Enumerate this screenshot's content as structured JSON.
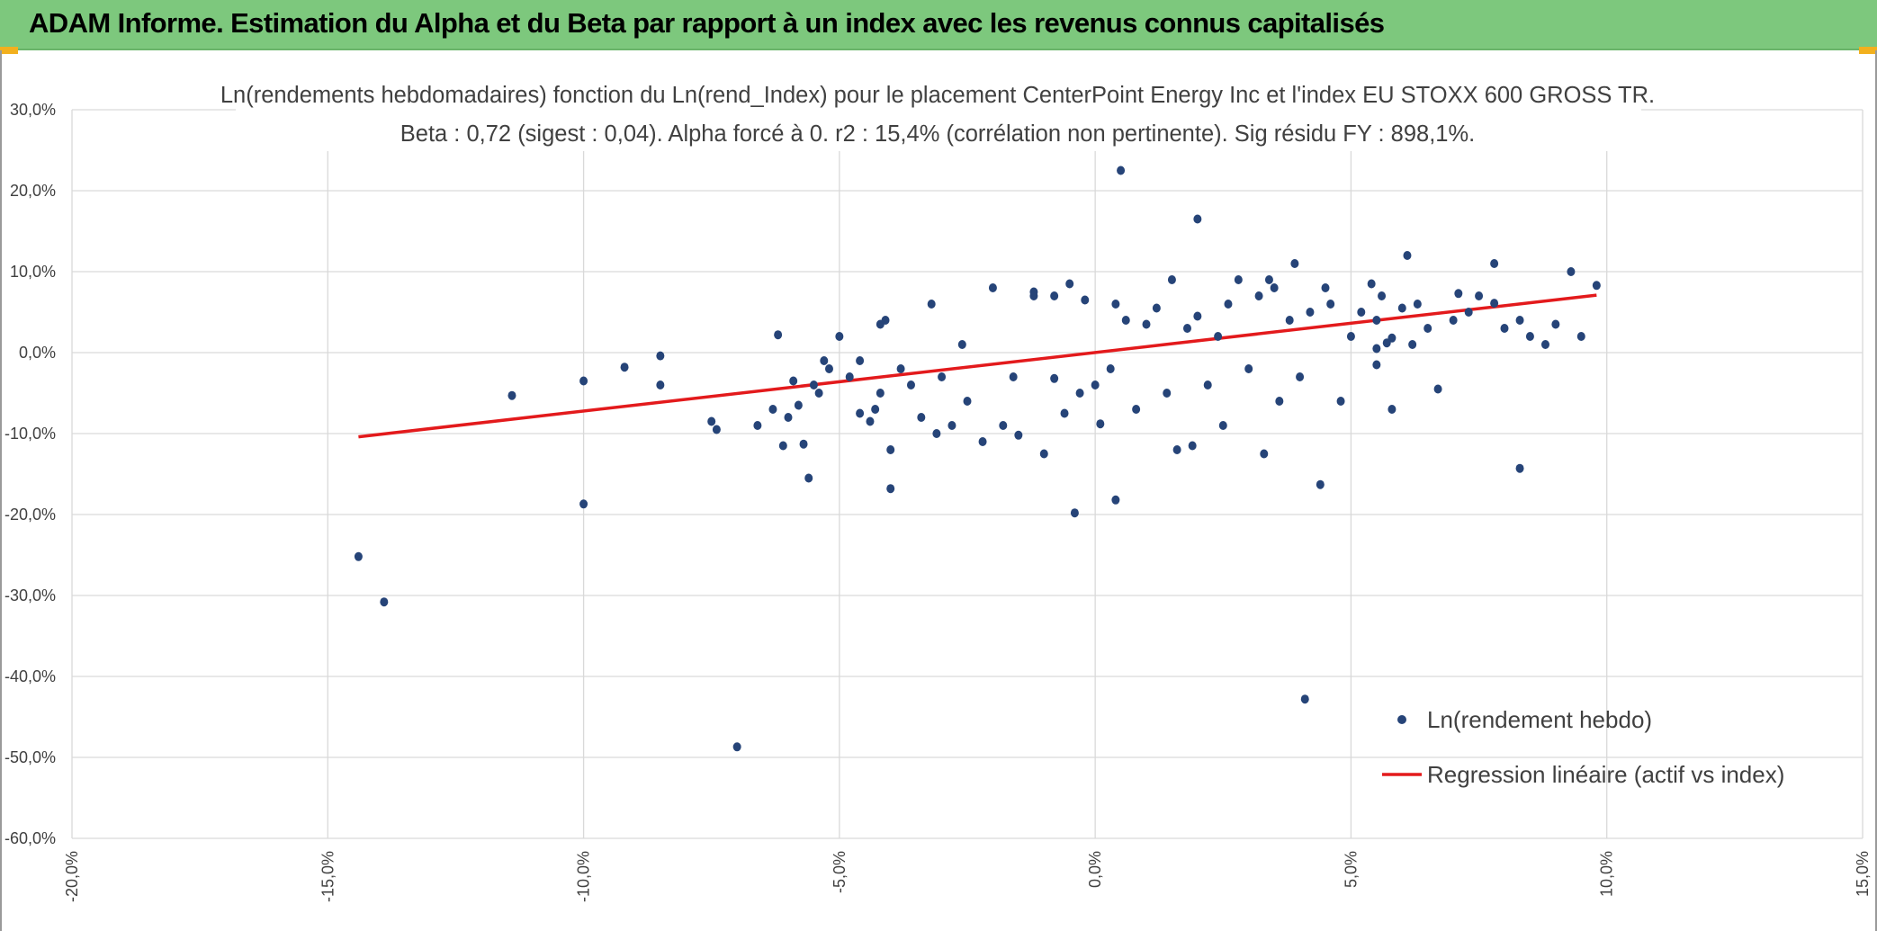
{
  "banner": {
    "title": "ADAM Informe. Estimation du Alpha et du Beta par rapport à un index avec les revenus connus capitalisés"
  },
  "colors": {
    "banner_bg": "#7dc87d",
    "points": "#264478",
    "regression": "#e31a1c",
    "grid": "#d9d9d9",
    "text": "#404040",
    "corner_marker": "#f2b01e"
  },
  "chart_data": {
    "type": "scatter",
    "title": "Ln(rendements hebdomadaires) fonction du Ln(rend_Index) pour le placement CenterPoint Energy Inc et l'index EU STOXX 600 GROSS TR.",
    "subtitle": "Beta : 0,72 (sigest : 0,04). Alpha forcé à 0. r2 : 15,4% (corrélation non pertinente). Sig résidu FY : 898,1%.",
    "xlim": [
      -0.2,
      0.15
    ],
    "ylim": [
      -0.6,
      0.3
    ],
    "x_ticks": [
      -0.2,
      -0.15,
      -0.1,
      -0.05,
      0.0,
      0.05,
      0.1,
      0.15
    ],
    "x_tick_labels": [
      "-20,0%",
      "-15,0%",
      "-10,0%",
      "-5,0%",
      "0,0%",
      "5,0%",
      "10,0%",
      "15,0%"
    ],
    "y_ticks": [
      0.3,
      0.2,
      0.1,
      0.0,
      -0.1,
      -0.2,
      -0.3,
      -0.4,
      -0.5,
      -0.6
    ],
    "y_tick_labels": [
      "30,0%",
      "20,0%",
      "10,0%",
      "0,0%",
      "-10,0%",
      "-20,0%",
      "-30,0%",
      "-40,0%",
      "-50,0%",
      "-60,0%"
    ],
    "grid": true,
    "legend_position": "bottom-right",
    "series": [
      {
        "name": "Ln(rendement hebdo)",
        "kind": "scatter",
        "points": [
          [
            -0.144,
            -0.252
          ],
          [
            -0.139,
            -0.308
          ],
          [
            -0.114,
            -0.053
          ],
          [
            -0.1,
            -0.035
          ],
          [
            -0.1,
            -0.187
          ],
          [
            -0.092,
            -0.018
          ],
          [
            -0.085,
            -0.004
          ],
          [
            -0.085,
            -0.04
          ],
          [
            -0.075,
            -0.085
          ],
          [
            -0.074,
            -0.095
          ],
          [
            -0.07,
            -0.487
          ],
          [
            -0.066,
            -0.09
          ],
          [
            -0.063,
            -0.07
          ],
          [
            -0.062,
            0.022
          ],
          [
            -0.061,
            -0.115
          ],
          [
            -0.06,
            -0.08
          ],
          [
            -0.059,
            -0.035
          ],
          [
            -0.058,
            -0.065
          ],
          [
            -0.057,
            -0.113
          ],
          [
            -0.056,
            -0.155
          ],
          [
            -0.055,
            -0.04
          ],
          [
            -0.054,
            -0.05
          ],
          [
            -0.053,
            -0.01
          ],
          [
            -0.052,
            -0.02
          ],
          [
            -0.05,
            0.02
          ],
          [
            -0.048,
            -0.03
          ],
          [
            -0.046,
            -0.01
          ],
          [
            -0.046,
            -0.075
          ],
          [
            -0.044,
            -0.085
          ],
          [
            -0.043,
            -0.07
          ],
          [
            -0.042,
            0.035
          ],
          [
            -0.042,
            -0.05
          ],
          [
            -0.041,
            0.04
          ],
          [
            -0.04,
            -0.12
          ],
          [
            -0.04,
            -0.168
          ],
          [
            -0.038,
            -0.02
          ],
          [
            -0.036,
            -0.04
          ],
          [
            -0.034,
            -0.08
          ],
          [
            -0.032,
            0.06
          ],
          [
            -0.031,
            -0.1
          ],
          [
            -0.03,
            -0.03
          ],
          [
            -0.028,
            -0.09
          ],
          [
            -0.026,
            0.01
          ],
          [
            -0.025,
            -0.06
          ],
          [
            -0.022,
            -0.11
          ],
          [
            -0.02,
            0.08
          ],
          [
            -0.018,
            -0.09
          ],
          [
            -0.016,
            -0.03
          ],
          [
            -0.015,
            -0.102
          ],
          [
            -0.012,
            0.07
          ],
          [
            -0.012,
            0.075
          ],
          [
            -0.01,
            -0.125
          ],
          [
            -0.008,
            0.07
          ],
          [
            -0.008,
            -0.032
          ],
          [
            -0.006,
            -0.075
          ],
          [
            -0.005,
            0.085
          ],
          [
            -0.004,
            -0.198
          ],
          [
            -0.003,
            -0.05
          ],
          [
            -0.002,
            0.065
          ],
          [
            0.0,
            -0.04
          ],
          [
            0.001,
            -0.088
          ],
          [
            0.003,
            -0.02
          ],
          [
            0.004,
            -0.182
          ],
          [
            0.004,
            0.06
          ],
          [
            0.005,
            0.225
          ],
          [
            0.006,
            0.04
          ],
          [
            0.008,
            -0.07
          ],
          [
            0.01,
            0.035
          ],
          [
            0.012,
            0.055
          ],
          [
            0.014,
            -0.05
          ],
          [
            0.015,
            0.09
          ],
          [
            0.016,
            -0.12
          ],
          [
            0.018,
            0.03
          ],
          [
            0.019,
            -0.115
          ],
          [
            0.02,
            0.045
          ],
          [
            0.02,
            0.165
          ],
          [
            0.022,
            -0.04
          ],
          [
            0.024,
            0.02
          ],
          [
            0.025,
            -0.09
          ],
          [
            0.026,
            0.06
          ],
          [
            0.028,
            0.09
          ],
          [
            0.03,
            -0.02
          ],
          [
            0.032,
            0.07
          ],
          [
            0.033,
            -0.125
          ],
          [
            0.034,
            0.09
          ],
          [
            0.035,
            0.08
          ],
          [
            0.036,
            -0.06
          ],
          [
            0.038,
            0.04
          ],
          [
            0.039,
            0.11
          ],
          [
            0.04,
            -0.03
          ],
          [
            0.041,
            -0.428
          ],
          [
            0.042,
            0.05
          ],
          [
            0.044,
            -0.163
          ],
          [
            0.045,
            0.08
          ],
          [
            0.046,
            0.06
          ],
          [
            0.048,
            -0.06
          ],
          [
            0.05,
            0.02
          ],
          [
            0.052,
            0.05
          ],
          [
            0.054,
            0.085
          ],
          [
            0.055,
            0.04
          ],
          [
            0.058,
            -0.07
          ],
          [
            0.06,
            0.055
          ],
          [
            0.063,
            0.06
          ],
          [
            0.065,
            0.03
          ],
          [
            0.067,
            -0.045
          ],
          [
            0.07,
            0.04
          ],
          [
            0.073,
            0.05
          ],
          [
            0.075,
            0.07
          ],
          [
            0.078,
            0.11
          ],
          [
            0.08,
            0.03
          ],
          [
            0.083,
            0.04
          ],
          [
            0.085,
            0.02
          ],
          [
            0.088,
            0.01
          ],
          [
            0.09,
            0.035
          ],
          [
            0.093,
            0.1
          ],
          [
            0.095,
            0.02
          ],
          [
            0.098,
            0.083
          ],
          [
            0.055,
            0.005
          ],
          [
            0.057,
            0.012
          ],
          [
            0.058,
            0.018
          ],
          [
            0.056,
            0.07
          ],
          [
            0.055,
            -0.015
          ],
          [
            0.061,
            0.12
          ],
          [
            0.062,
            0.01
          ],
          [
            0.071,
            0.073
          ],
          [
            0.078,
            0.061
          ],
          [
            0.083,
            -0.143
          ]
        ]
      },
      {
        "name": "Regression linéaire (actif vs index)",
        "kind": "line",
        "points": [
          [
            -0.144,
            -0.104
          ],
          [
            0.098,
            0.071
          ]
        ]
      }
    ]
  }
}
